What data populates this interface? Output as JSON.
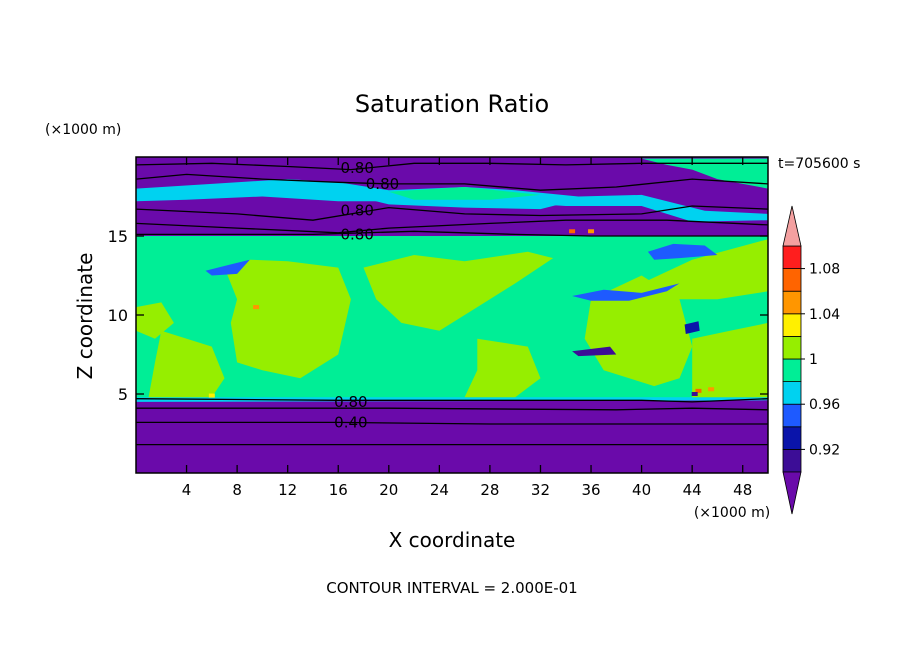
{
  "chart_data": {
    "type": "heatmap",
    "title": "Saturation Ratio",
    "xlabel": "X coordinate",
    "ylabel": "Z coordinate",
    "x_unit": "(×1000 m)",
    "y_unit": "(×1000 m)",
    "time_label": "t=705600 s",
    "footer": "CONTOUR INTERVAL = 2.000E-01",
    "xlim": [
      0,
      50
    ],
    "ylim": [
      0,
      20
    ],
    "x_ticks": [
      4,
      8,
      12,
      16,
      20,
      24,
      28,
      32,
      36,
      40,
      44,
      48
    ],
    "y_ticks": [
      5,
      10,
      15
    ],
    "colorbar": {
      "ticks": [
        "0.92",
        "0.96",
        "1",
        "1.04",
        "1.08"
      ],
      "bands": [
        {
          "range": [
            0,
            0.9
          ],
          "color": "#6a0aaa"
        },
        {
          "range": [
            0.9,
            0.92
          ],
          "color": "#3c0d96"
        },
        {
          "range": [
            0.92,
            0.94
          ],
          "color": "#0a14aa"
        },
        {
          "range": [
            0.94,
            0.96
          ],
          "color": "#1e5aff"
        },
        {
          "range": [
            0.96,
            0.98
          ],
          "color": "#00d2f0"
        },
        {
          "range": [
            0.98,
            1.0
          ],
          "color": "#00ee96"
        },
        {
          "range": [
            1.0,
            1.02
          ],
          "color": "#96ee00"
        },
        {
          "range": [
            1.02,
            1.04
          ],
          "color": "#fff000"
        },
        {
          "range": [
            1.04,
            1.06
          ],
          "color": "#ff9600"
        },
        {
          "range": [
            1.06,
            1.08
          ],
          "color": "#ff6400"
        },
        {
          "range": [
            1.08,
            1.1
          ],
          "color": "#ff1e1e"
        },
        {
          "range": [
            1.1,
            1.2
          ],
          "color": "#f4a0a0"
        }
      ]
    },
    "contour_labels": [
      {
        "text": "0.80",
        "x": 17.5,
        "y": 19.3
      },
      {
        "text": "0.80",
        "x": 19.5,
        "y": 18.3
      },
      {
        "text": "0.80",
        "x": 17.5,
        "y": 16.6
      },
      {
        "text": "0.80",
        "x": 17.5,
        "y": 15.1
      },
      {
        "text": "0.80",
        "x": 17.0,
        "y": 4.5
      },
      {
        "text": "0.40",
        "x": 17.0,
        "y": 3.2
      }
    ]
  }
}
